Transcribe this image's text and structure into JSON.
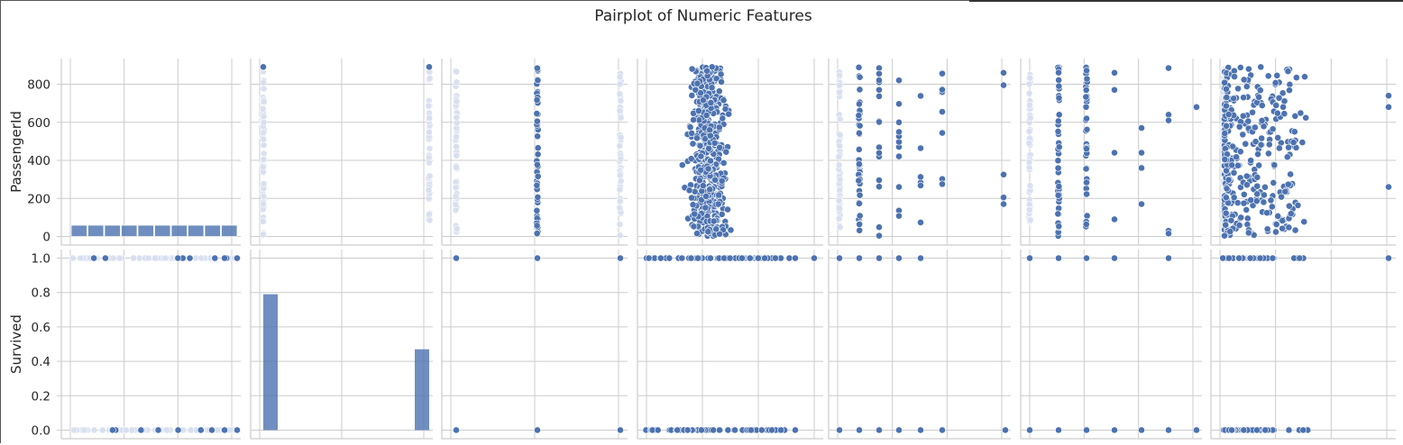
{
  "title": "Pairplot of Numeric Features",
  "colors": {
    "marker": "#4c72b0",
    "edge": "#ffffff",
    "grid": "#cccccc",
    "axis": "#cccccc"
  },
  "chart_data": {
    "type": "scatter",
    "title": "Pairplot of Numeric Features",
    "grid": true,
    "rows": [
      {
        "ylabel": "PassengerId",
        "ylim": [
          -45,
          935
        ],
        "yticks": [
          0,
          200,
          400,
          600,
          800
        ],
        "tick_labels": [
          "0",
          "200",
          "400",
          "600",
          "800"
        ]
      },
      {
        "ylabel": "Survived",
        "ylim": [
          -0.05,
          1.05
        ],
        "yticks": [
          0.0,
          0.2,
          0.4,
          0.6,
          0.8,
          1.0
        ],
        "tick_labels": [
          "0.0",
          "0.2",
          "0.4",
          "0.6",
          "0.8",
          "1.0"
        ]
      }
    ],
    "panels": {
      "passengerid_hist": {
        "type": "histogram",
        "bin_edges": [
          1,
          90,
          179,
          268,
          357,
          446,
          535,
          624,
          713,
          802,
          891
        ],
        "counts": [
          89,
          89,
          89,
          89,
          89,
          89,
          89,
          89,
          89,
          89
        ]
      },
      "survived_hist": {
        "type": "histogram",
        "bins": [
          0.0,
          1.0
        ],
        "density": [
          0.79,
          0.47
        ]
      },
      "survived_levels": [
        0,
        1
      ],
      "pclass_levels": [
        1,
        2,
        3
      ],
      "sibsp_levels": [
        0,
        1,
        2,
        3,
        4,
        5,
        8
      ],
      "parch_levels": [
        0,
        1,
        2,
        3,
        4,
        5,
        6
      ],
      "fare_range": [
        0,
        512
      ],
      "age_range": [
        0.4,
        80
      ]
    }
  }
}
